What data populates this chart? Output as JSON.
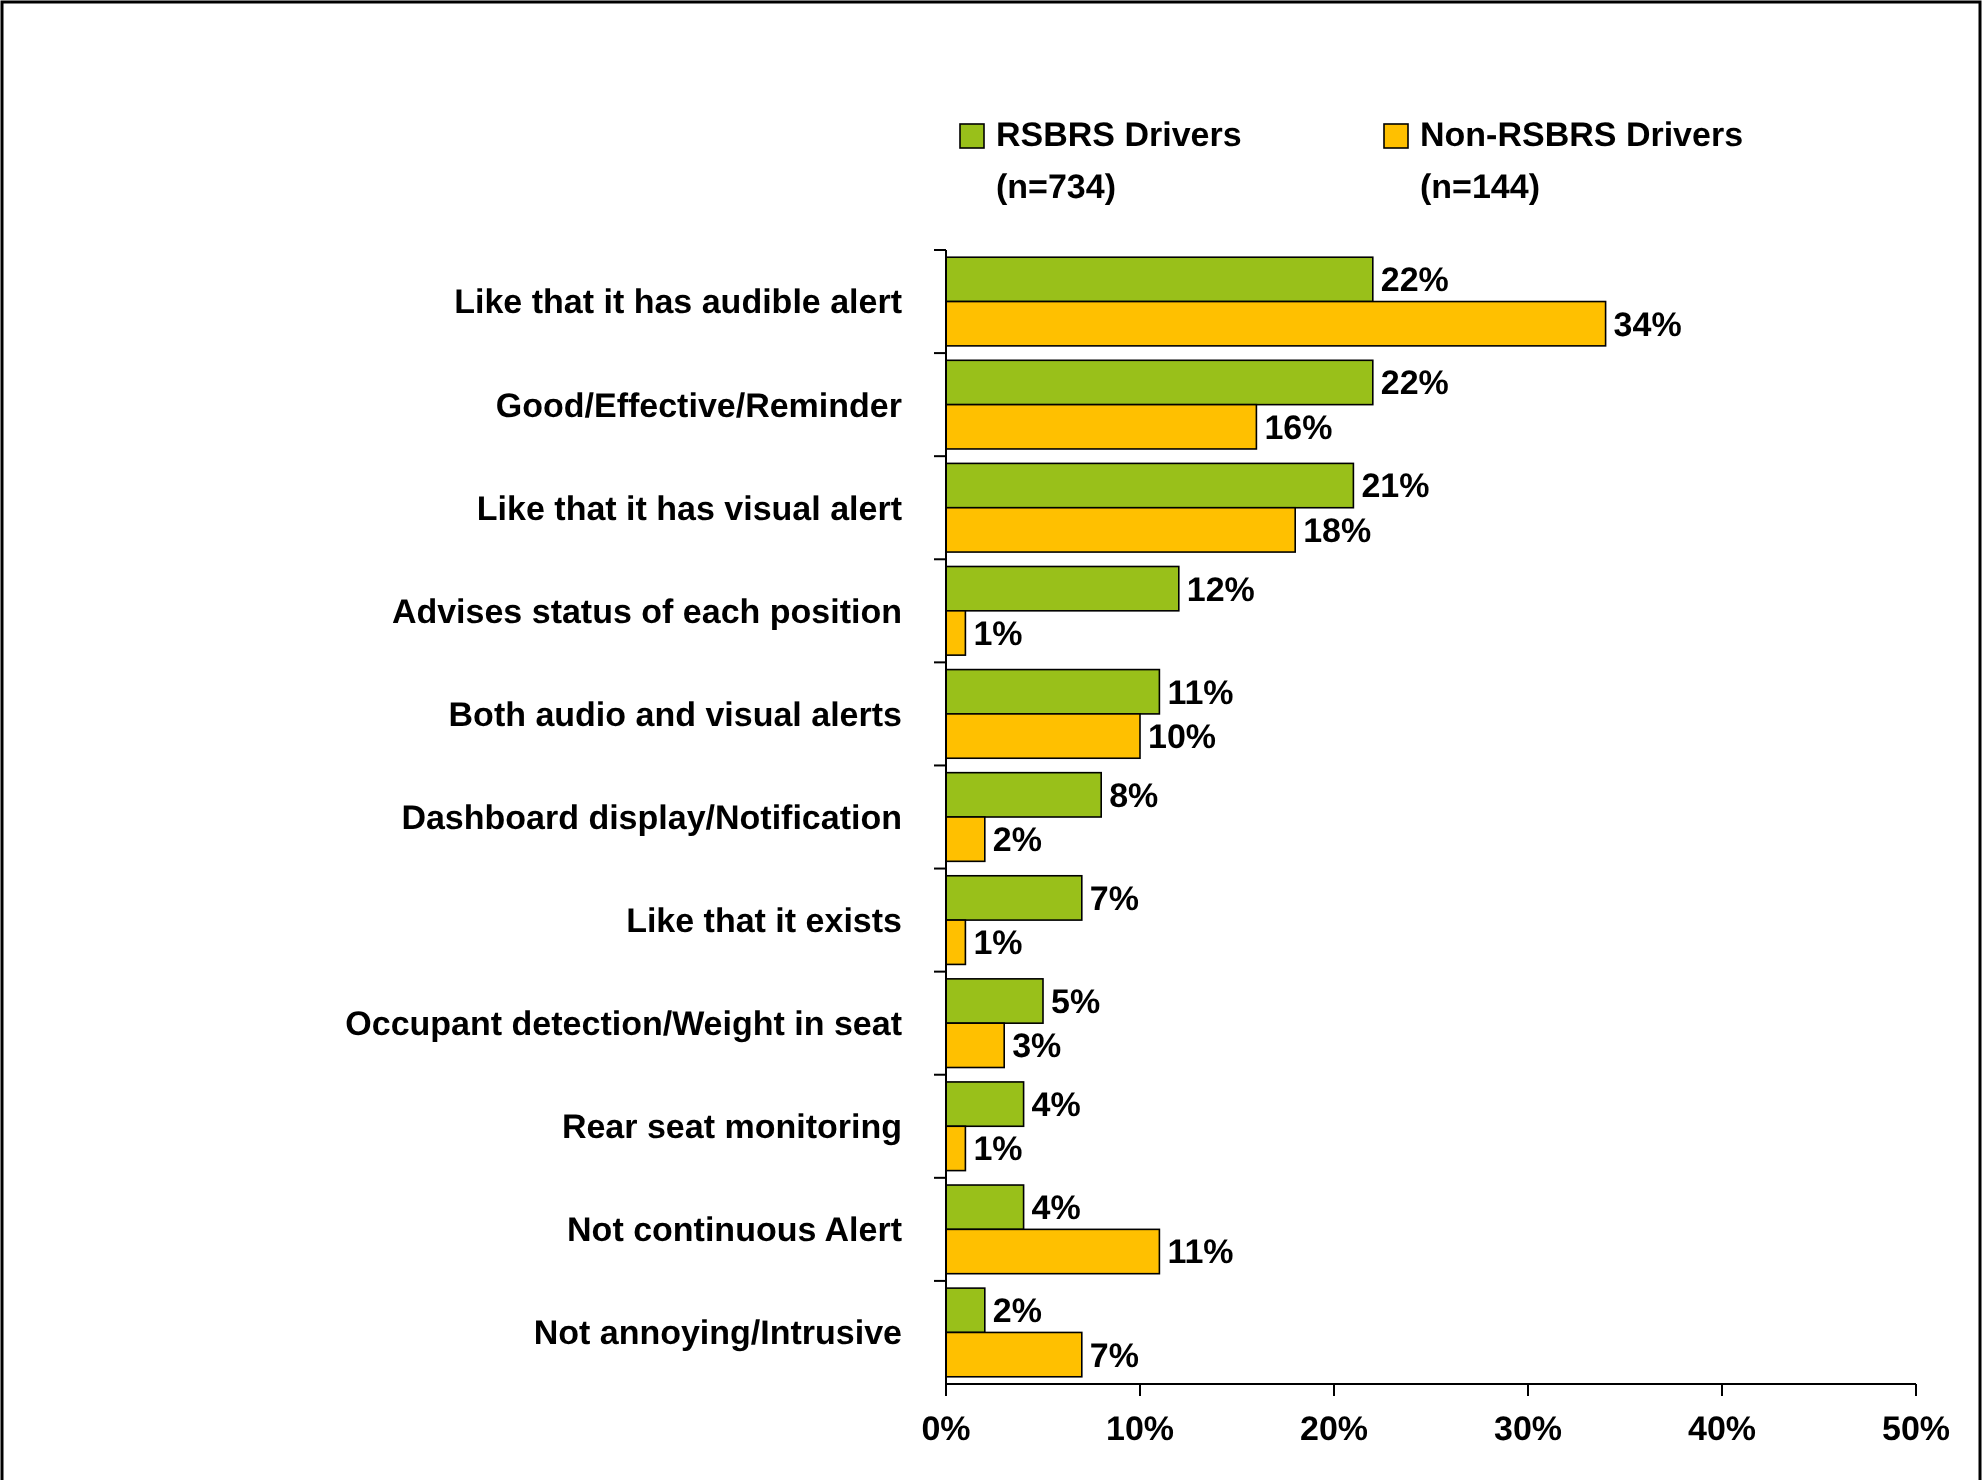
{
  "chart_data": {
    "type": "bar",
    "orientation": "horizontal",
    "legend": "top",
    "categories": [
      "Like that it has audible alert",
      "Good/Effective/Reminder",
      "Like that it has visual alert",
      "Advises status of each position",
      "Both audio and visual alerts",
      "Dashboard display/Notification",
      "Like that it exists",
      "Occupant detection/Weight in seat",
      "Rear seat monitoring",
      "Not continuous Alert",
      "Not annoying/Intrusive"
    ],
    "series": [
      {
        "name": "RSBRS Drivers\n(n=734)",
        "color": "#99c01a",
        "values": [
          22,
          22,
          21,
          12,
          11,
          8,
          7,
          5,
          4,
          4,
          2
        ],
        "value_labels": [
          "22%",
          "22%",
          "21%",
          "12%",
          "11%",
          "8%",
          "7%",
          "5%",
          "4%",
          "4%",
          "2%"
        ]
      },
      {
        "name": "Non-RSBRS Drivers\n(n=144)",
        "color": "#ffc000",
        "values": [
          34,
          16,
          18,
          1,
          10,
          2,
          1,
          3,
          1,
          11,
          7
        ],
        "value_labels": [
          "34%",
          "16%",
          "18%",
          "1%",
          "10%",
          "2%",
          "1%",
          "3%",
          "1%",
          "11%",
          "7%"
        ]
      }
    ],
    "xlim": [
      0,
      50
    ],
    "xticks": [
      {
        "value": 0,
        "label": "0%"
      },
      {
        "value": 10,
        "label": "10%"
      },
      {
        "value": 20,
        "label": "20%"
      },
      {
        "value": 30,
        "label": "30%"
      },
      {
        "value": 40,
        "label": "40%"
      },
      {
        "value": 50,
        "label": "50%"
      }
    ]
  }
}
